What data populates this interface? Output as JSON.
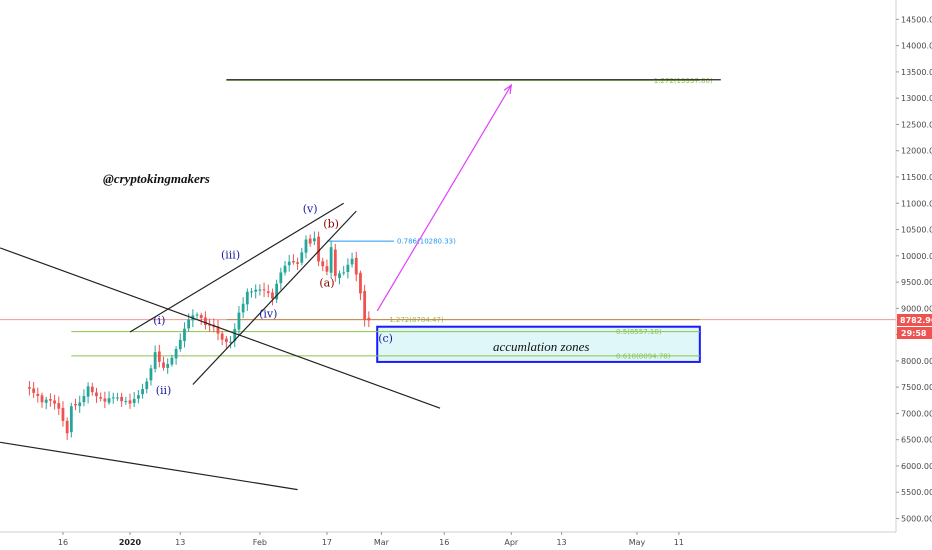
{
  "watermark": "@cryptokingmakers",
  "zone_label": "accumlation zones",
  "price_tag": "8782.96",
  "timer_tag": "29:58",
  "colors": {
    "up": "#26a69a",
    "down": "#ef5350",
    "wave_blue": "#1a1a9e",
    "wave_red": "#8b0000",
    "fib_green": "#8bc34a",
    "fib_blue": "#2196f3",
    "projection": "#e040fb",
    "zone_fill": "#e0f7fa",
    "zone_border": "#1a1aff",
    "price_line": "#ef5350"
  },
  "chart_data": {
    "type": "candlestick",
    "y_axis": {
      "min": 4800,
      "max": 14800,
      "side": "right",
      "ticks": [
        5000,
        5500,
        6000,
        6500,
        7000,
        7500,
        8000,
        8500,
        9000,
        9500,
        10000,
        10500,
        11000,
        11500,
        12000,
        12500,
        13000,
        13500,
        14000,
        14500
      ],
      "tick_labels": [
        "5000.00",
        "5500.00",
        "6000.00",
        "6500.00",
        "7000.00",
        "7500.00",
        "8000.00",
        "8500.00",
        "9000.00",
        "9500.00",
        "10000.00",
        "10500.00",
        "11000.00",
        "11500.00",
        "12000.00",
        "12500.00",
        "13000.00",
        "13500.00",
        "14000.00",
        "14500.00"
      ]
    },
    "x_axis": {
      "ticks": [
        {
          "label": "16",
          "date": "2019-12-16",
          "bold": false
        },
        {
          "label": "2020",
          "date": "2020-01-01",
          "bold": true
        },
        {
          "label": "13",
          "date": "2020-01-13",
          "bold": false
        },
        {
          "label": "Feb",
          "date": "2020-02-01",
          "bold": false
        },
        {
          "label": "17",
          "date": "2020-02-17",
          "bold": false
        },
        {
          "label": "Mar",
          "date": "2020-03-01",
          "bold": false
        },
        {
          "label": "16",
          "date": "2020-03-16",
          "bold": false
        },
        {
          "label": "Apr",
          "date": "2020-04-01",
          "bold": false
        },
        {
          "label": "13",
          "date": "2020-04-13",
          "bold": false
        },
        {
          "label": "May",
          "date": "2020-05-01",
          "bold": false
        },
        {
          "label": "11",
          "date": "2020-05-11",
          "bold": false
        }
      ]
    },
    "closes": [
      {
        "date": "2019-12-07",
        "close": 7520
      },
      {
        "date": "2019-12-09",
        "close": 7400
      },
      {
        "date": "2019-12-11",
        "close": 7230
      },
      {
        "date": "2019-12-13",
        "close": 7260
      },
      {
        "date": "2019-12-15",
        "close": 7100
      },
      {
        "date": "2019-12-17",
        "close": 6620
      },
      {
        "date": "2019-12-18",
        "close": 7150
      },
      {
        "date": "2019-12-20",
        "close": 7190
      },
      {
        "date": "2019-12-22",
        "close": 7500
      },
      {
        "date": "2019-12-24",
        "close": 7320
      },
      {
        "date": "2019-12-26",
        "close": 7230
      },
      {
        "date": "2019-12-28",
        "close": 7320
      },
      {
        "date": "2019-12-30",
        "close": 7250
      },
      {
        "date": "2020-01-01",
        "close": 7200
      },
      {
        "date": "2020-01-03",
        "close": 7350
      },
      {
        "date": "2020-01-05",
        "close": 7600
      },
      {
        "date": "2020-01-07",
        "close": 8150
      },
      {
        "date": "2020-01-09",
        "close": 7850
      },
      {
        "date": "2020-01-11",
        "close": 8050
      },
      {
        "date": "2020-01-13",
        "close": 8400
      },
      {
        "date": "2020-01-15",
        "close": 8800
      },
      {
        "date": "2020-01-17",
        "close": 8900
      },
      {
        "date": "2020-01-19",
        "close": 8700
      },
      {
        "date": "2020-01-21",
        "close": 8650
      },
      {
        "date": "2020-01-23",
        "close": 8400
      },
      {
        "date": "2020-01-25",
        "close": 8350
      },
      {
        "date": "2020-01-27",
        "close": 8900
      },
      {
        "date": "2020-01-29",
        "close": 9300
      },
      {
        "date": "2020-01-31",
        "close": 9350
      },
      {
        "date": "2020-02-02",
        "close": 9350
      },
      {
        "date": "2020-02-04",
        "close": 9200
      },
      {
        "date": "2020-02-06",
        "close": 9700
      },
      {
        "date": "2020-02-08",
        "close": 9900
      },
      {
        "date": "2020-02-10",
        "close": 9850
      },
      {
        "date": "2020-02-12",
        "close": 10300
      },
      {
        "date": "2020-02-13",
        "close": 10250
      },
      {
        "date": "2020-02-14",
        "close": 10350
      },
      {
        "date": "2020-02-15",
        "close": 9900
      },
      {
        "date": "2020-02-17",
        "close": 9700
      },
      {
        "date": "2020-02-18",
        "close": 10150
      },
      {
        "date": "2020-02-19",
        "close": 9600
      },
      {
        "date": "2020-02-21",
        "close": 9700
      },
      {
        "date": "2020-02-23",
        "close": 9950
      },
      {
        "date": "2020-02-24",
        "close": 9650
      },
      {
        "date": "2020-02-25",
        "close": 9300
      },
      {
        "date": "2020-02-26",
        "close": 8800
      },
      {
        "date": "2020-02-27",
        "close": 8783
      }
    ],
    "drawn_lines": [
      {
        "d1": "2019-12-01",
        "p1": 10150,
        "d2": "2020-03-15",
        "p2": 7100
      },
      {
        "d1": "2019-12-01",
        "p1": 6450,
        "d2": "2020-02-10",
        "p2": 5550
      },
      {
        "d1": "2020-01-01",
        "p1": 8550,
        "d2": "2020-02-21",
        "p2": 11000
      },
      {
        "d1": "2020-01-16",
        "p1": 7550,
        "d2": "2020-02-24",
        "p2": 10850
      },
      {
        "d1": "2020-01-24",
        "p1": 13350,
        "d2": "2020-05-21",
        "p2": 13350
      }
    ],
    "fib_levels": [
      {
        "label": "0.786(10280.33)",
        "price": 10280.33,
        "color_key": "fib_blue"
      },
      {
        "label": "1.272(8784.47)",
        "price": 8784.47,
        "color_key": "fib_green"
      },
      {
        "label": "0.5(8557.10)",
        "price": 8557.1,
        "color_key": "fib_green"
      },
      {
        "label": "0.618(8094.78)",
        "price": 8094.78,
        "color_key": "fib_green"
      },
      {
        "label": "1.272(13337.80)",
        "price": 13337.8,
        "color_key": "fib_green"
      }
    ],
    "wave_labels": [
      {
        "label": "(i)",
        "date": "2020-01-08",
        "price": 8700,
        "color_key": "wave_blue"
      },
      {
        "label": "(ii)",
        "date": "2020-01-09",
        "price": 7370,
        "color_key": "wave_blue"
      },
      {
        "label": "(iii)",
        "date": "2020-01-25",
        "price": 9950,
        "color_key": "wave_blue"
      },
      {
        "label": "(iv)",
        "date": "2020-02-03",
        "price": 8830,
        "color_key": "wave_blue"
      },
      {
        "label": "(v)",
        "date": "2020-02-13",
        "price": 10820,
        "color_key": "wave_blue"
      },
      {
        "label": "(b)",
        "date": "2020-02-18",
        "price": 10540,
        "color_key": "wave_red"
      },
      {
        "label": "(a)",
        "date": "2020-02-17",
        "price": 9420,
        "color_key": "wave_red"
      },
      {
        "label": "(c)",
        "date": "2020-03-02",
        "price": 8360,
        "color_key": "wave_blue"
      }
    ],
    "accumulation_zone": {
      "date_start": "2020-02-29",
      "date_end": "2020-05-16",
      "price_top": 8650,
      "price_bottom": 7980
    },
    "projection_arrow": {
      "d1": "2020-02-29",
      "p1": 8950,
      "d2": "2020-04-01",
      "p2": 13250
    }
  }
}
